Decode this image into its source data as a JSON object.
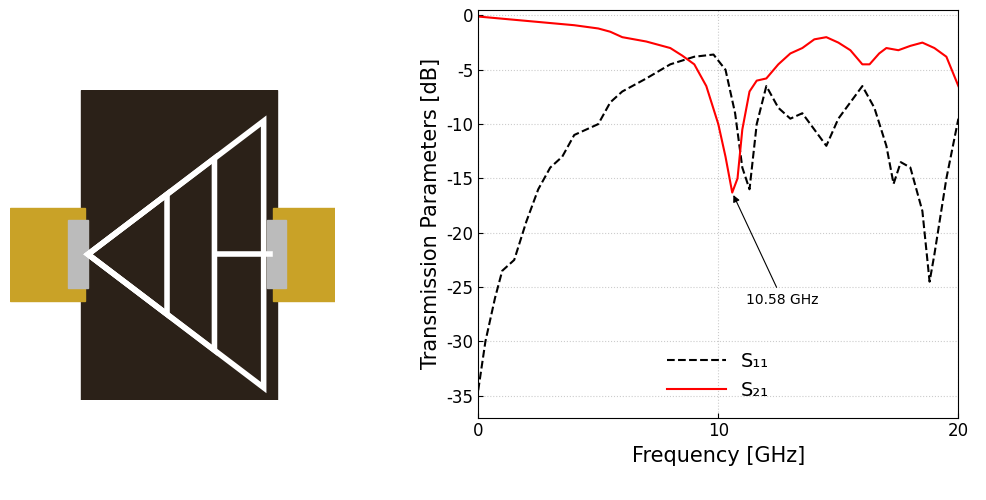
{
  "chart_data": {
    "type": "line",
    "x_label": "Frequency [GHz]",
    "y_label": "Transmission Parameters [dB]",
    "xlim": [
      0,
      20
    ],
    "xticks": [
      0,
      10,
      20
    ],
    "ylim": [
      -37,
      0.5
    ],
    "yticks": [
      -35,
      -30,
      -25,
      -20,
      -15,
      -10,
      -5,
      0
    ],
    "grid": true,
    "legend": "lower center",
    "annotations": [
      {
        "text": "10.58 GHz",
        "x": 10.58,
        "y": -16.3
      }
    ],
    "series": [
      {
        "name": "S₁₁",
        "color": "#000000",
        "line_style": "dashed",
        "x": [
          0,
          0.3,
          0.7,
          1,
          1.5,
          2,
          2.5,
          3,
          3.5,
          4,
          5,
          5.5,
          6,
          7,
          8,
          9,
          9.8,
          10.3,
          10.7,
          11,
          11.3,
          11.6,
          12,
          12.5,
          13,
          13.5,
          14,
          14.5,
          15,
          15.5,
          16,
          16.5,
          17,
          17.3,
          17.6,
          18,
          18.5,
          18.8,
          19,
          19.5,
          20
        ],
        "values": [
          -34.5,
          -30,
          -26,
          -23.5,
          -22.5,
          -19,
          -16,
          -14,
          -13,
          -11,
          -10,
          -8,
          -7,
          -5.8,
          -4.5,
          -3.8,
          -3.6,
          -5,
          -9,
          -14,
          -16,
          -10,
          -6.5,
          -8.5,
          -9.5,
          -9,
          -10.5,
          -12,
          -9.5,
          -8,
          -6.5,
          -8.5,
          -12,
          -15.5,
          -13.5,
          -14,
          -18,
          -24.5,
          -22,
          -15,
          -9.5
        ]
      },
      {
        "name": "S₂₁",
        "color": "#ff0000",
        "line_style": "solid",
        "x": [
          0,
          1,
          2,
          3,
          4,
          5,
          5.5,
          6,
          7,
          8,
          8.5,
          9,
          9.5,
          10,
          10.3,
          10.58,
          10.8,
          11,
          11.3,
          11.6,
          12,
          12.5,
          13,
          13.5,
          14,
          14.5,
          15,
          15.5,
          16,
          16.3,
          16.7,
          17,
          17.5,
          18,
          18.5,
          19,
          19.5,
          20
        ],
        "values": [
          -0.1,
          -0.3,
          -0.5,
          -0.7,
          -0.9,
          -1.2,
          -1.5,
          -2.0,
          -2.4,
          -3.0,
          -3.7,
          -4.5,
          -6.5,
          -10,
          -13,
          -16.3,
          -15,
          -10.5,
          -7,
          -6,
          -5.8,
          -4.5,
          -3.5,
          -3,
          -2.2,
          -2.0,
          -2.5,
          -3.2,
          -4.5,
          -4.5,
          -3.5,
          -3.0,
          -3.2,
          -2.8,
          -2.5,
          -3.0,
          -3.8,
          -6.5
        ]
      }
    ]
  }
}
